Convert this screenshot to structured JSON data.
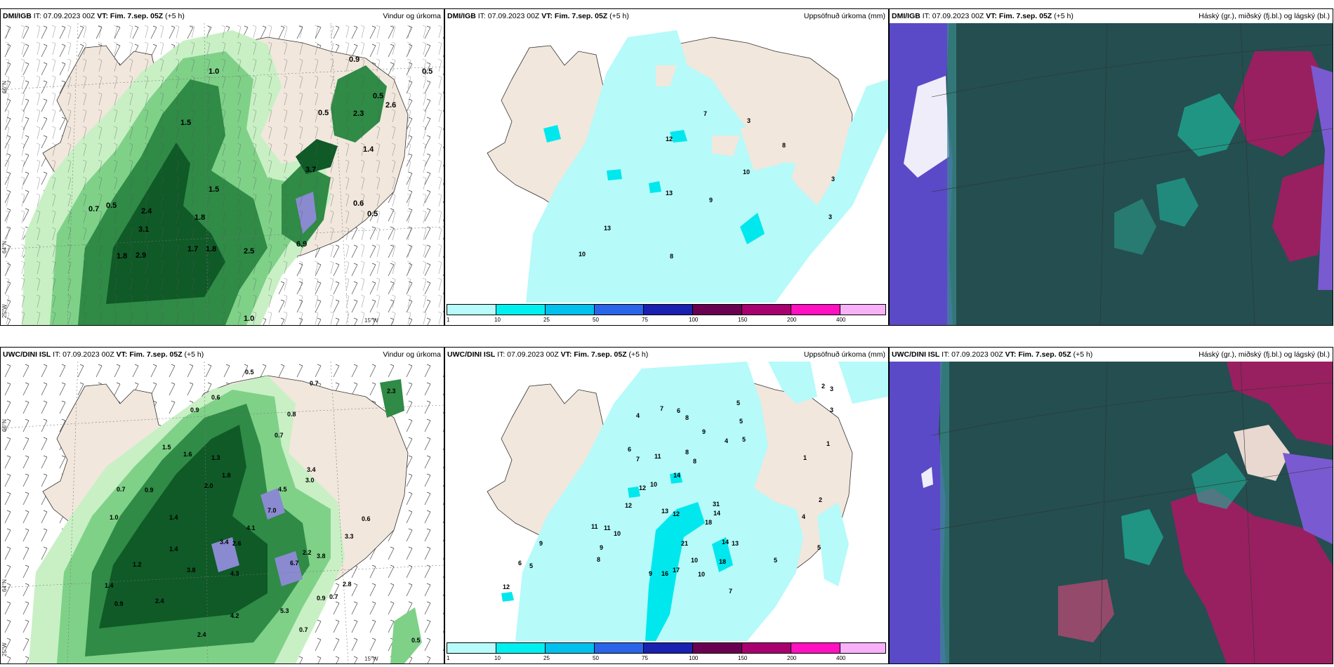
{
  "panels": {
    "p1": {
      "model": "DMI/IGB",
      "it_label": "IT: 07.09.2023 00Z",
      "vt_label": "VT: Fim. 7.sep. 05Z",
      "lead": "(+5 h)",
      "field": "Vindur og úrkoma"
    },
    "p2": {
      "model": "DMI/IGB",
      "it_label": "IT: 07.09.2023 00Z",
      "vt_label": "VT: Fim. 7.sep. 05Z",
      "lead": "(+5 h)",
      "field": "Uppsöfnuð úrkoma (mm)"
    },
    "p3": {
      "model": "DMI/IGB",
      "it_label": "IT: 07.09.2023 00Z",
      "vt_label": "VT: Fim. 7.sep. 05Z",
      "lead": "(+5 h)",
      "field": "Háský (gr.), miðský (fj.bl.) og lágský (bl.)"
    },
    "p4": {
      "model": "UWC/DINI ISL",
      "it_label": "IT: 07.09.2023 00Z",
      "vt_label": "VT: Fim. 7.sep. 05Z",
      "lead": "(+5 h)",
      "field": "Vindur og úrkoma"
    },
    "p5": {
      "model": "UWC/DINI ISL",
      "it_label": "IT: 07.09.2023 00Z",
      "vt_label": "VT: Fim. 7.sep. 05Z",
      "lead": "(+5 h)",
      "field": "Uppsöfnuð úrkoma (mm)"
    },
    "p6": {
      "model": "UWC/DINI ISL",
      "it_label": "IT: 07.09.2023 00Z",
      "vt_label": "VT: Fim. 7.sep. 05Z",
      "lead": "(+5 h)",
      "field": "Háský (gr.), miðský (fj.bl.) og lágský (bl.)"
    }
  },
  "edge_labels": {
    "lat66": "66°N",
    "lat64": "64°N",
    "lon25": "25°W",
    "lon15": "15°W"
  },
  "colorbar": {
    "ticks": [
      "1",
      "10",
      "25",
      "50",
      "75",
      "100",
      "150",
      "200",
      "400"
    ],
    "colors": [
      "#b8fbfb",
      "#00f0f0",
      "#00c0ee",
      "#2a64e8",
      "#1a20b0",
      "#6a0050",
      "#a8006e",
      "#ff10c0",
      "#f8b0f8"
    ]
  },
  "map_colors": {
    "land": "#f1e7dc",
    "accum_light": "#b6fafa",
    "accum_mid": "#00e8ee",
    "cloud_bg": "#244e50",
    "cloud_sea": "#5a4ac8",
    "cloud_high": "#982060"
  },
  "labels": {
    "p1": [
      "0.9",
      "0.5",
      "1.0",
      "0.5",
      "1.5",
      "0.5",
      "2.3",
      "2.6",
      "1.4",
      "3.7",
      "0.6",
      "0.5",
      "1.5",
      "0.7",
      "0.5",
      "2.4",
      "1.8",
      "3.1",
      "2.9",
      "1.8",
      "1.7",
      "2.5",
      "6.9",
      "1.8",
      "1.0"
    ],
    "p2": [
      "7",
      "3",
      "8",
      "12",
      "10",
      "13",
      "13",
      "10",
      "8",
      "3",
      "3",
      "9"
    ],
    "p4": [
      "0.5",
      "0.7",
      "0.6",
      "0.8",
      "0.9",
      "0.7",
      "1.5",
      "1.6",
      "1.3",
      "2.0",
      "1.8",
      "3.4",
      "3.0",
      "4.5",
      "4.1",
      "7.0",
      "3.4",
      "2.6",
      "0.6",
      "3.3",
      "1.4",
      "1.0",
      "0.7",
      "0.9",
      "1.4",
      "2.2",
      "6.7",
      "4.3",
      "3.8",
      "2.8",
      "0.9",
      "0.7",
      "5.3",
      "4.2",
      "2.4",
      "3.8",
      "0.7",
      "0.5",
      "2.3",
      "1.4",
      "0.9",
      "2.4",
      "1.2"
    ],
    "p5": [
      "4",
      "7",
      "6",
      "8",
      "5",
      "9",
      "4",
      "5",
      "5",
      "6",
      "7",
      "8",
      "11",
      "8",
      "14",
      "10",
      "12",
      "12",
      "13",
      "12",
      "11",
      "11",
      "10",
      "9",
      "8",
      "21",
      "31",
      "14",
      "13",
      "18",
      "16",
      "17",
      "10",
      "10",
      "9",
      "7",
      "5",
      "4",
      "2",
      "5",
      "1",
      "1",
      "3",
      "3",
      "2",
      "12",
      "6",
      "9",
      "5",
      "18",
      "14"
    ]
  }
}
